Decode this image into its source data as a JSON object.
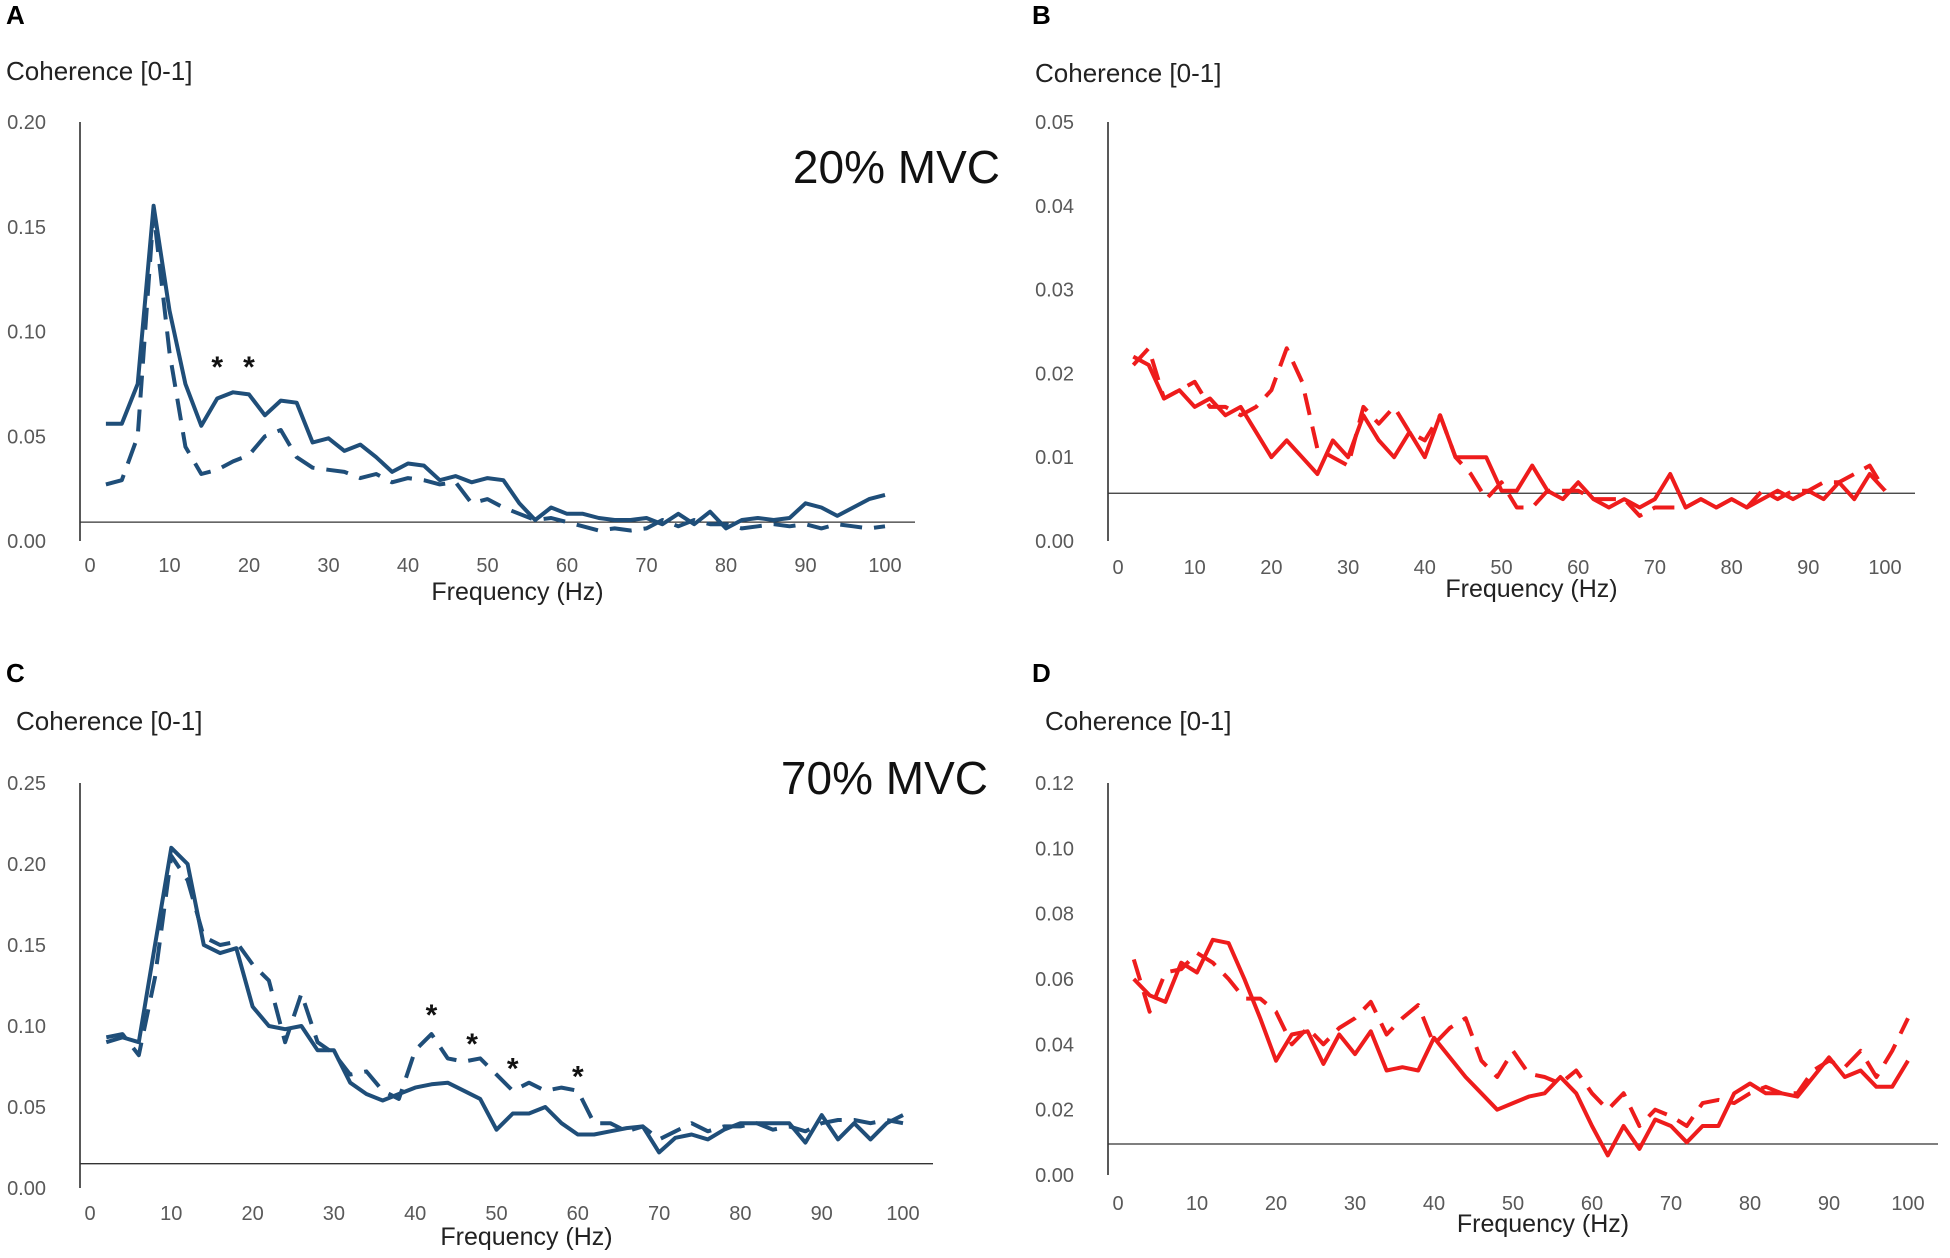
{
  "chart_data": [
    {
      "panel": "A",
      "type": "line",
      "ylabel": "Coherence [0-1]",
      "xlabel": "Frequency (Hz)",
      "ylim": [
        0,
        0.2
      ],
      "xlim": [
        0,
        100
      ],
      "yticks": [
        "0.00",
        "0.05",
        "0.10",
        "0.15",
        "0.20"
      ],
      "xticks": [
        "0",
        "10",
        "20",
        "30",
        "40",
        "50",
        "60",
        "70",
        "80",
        "90",
        "100"
      ],
      "annotation": "20% MVC",
      "significance": [
        {
          "x": 16,
          "y": 0.084,
          "label": "*"
        },
        {
          "x": 20,
          "y": 0.084,
          "label": "*"
        }
      ],
      "threshold": 0.009,
      "color": "#1f4e79",
      "series": [
        {
          "name": "solid",
          "style": "solid",
          "x": [
            2,
            4,
            6,
            8,
            10,
            12,
            14,
            16,
            18,
            20,
            22,
            24,
            26,
            28,
            30,
            32,
            34,
            36,
            38,
            40,
            42,
            44,
            46,
            48,
            50,
            52,
            54,
            56,
            58,
            60,
            62,
            64,
            66,
            68,
            70,
            72,
            74,
            76,
            78,
            80,
            82,
            84,
            86,
            88,
            90,
            92,
            94,
            96,
            98,
            100
          ],
          "y": [
            0.056,
            0.056,
            0.075,
            0.16,
            0.11,
            0.075,
            0.055,
            0.068,
            0.071,
            0.07,
            0.06,
            0.067,
            0.066,
            0.047,
            0.049,
            0.043,
            0.046,
            0.04,
            0.033,
            0.037,
            0.036,
            0.029,
            0.031,
            0.028,
            0.03,
            0.029,
            0.018,
            0.01,
            0.016,
            0.013,
            0.013,
            0.011,
            0.01,
            0.01,
            0.011,
            0.008,
            0.013,
            0.008,
            0.014,
            0.006,
            0.01,
            0.011,
            0.01,
            0.011,
            0.018,
            0.016,
            0.012,
            0.016,
            0.02,
            0.022
          ]
        },
        {
          "name": "dashed",
          "style": "dashed",
          "x": [
            2,
            4,
            6,
            8,
            10,
            12,
            14,
            16,
            18,
            20,
            22,
            24,
            26,
            28,
            30,
            32,
            34,
            36,
            38,
            40,
            42,
            44,
            46,
            48,
            50,
            52,
            54,
            56,
            58,
            60,
            62,
            64,
            66,
            68,
            70,
            72,
            74,
            76,
            78,
            80,
            82,
            84,
            86,
            88,
            90,
            92,
            94,
            96,
            98,
            100
          ],
          "y": [
            0.027,
            0.029,
            0.05,
            0.157,
            0.09,
            0.045,
            0.032,
            0.034,
            0.038,
            0.041,
            0.05,
            0.053,
            0.04,
            0.035,
            0.034,
            0.033,
            0.03,
            0.032,
            0.028,
            0.03,
            0.029,
            0.027,
            0.028,
            0.018,
            0.02,
            0.016,
            0.013,
            0.01,
            0.011,
            0.009,
            0.007,
            0.005,
            0.006,
            0.005,
            0.006,
            0.01,
            0.007,
            0.01,
            0.008,
            0.008,
            0.006,
            0.007,
            0.008,
            0.007,
            0.008,
            0.006,
            0.008,
            0.007,
            0.006,
            0.007
          ]
        }
      ]
    },
    {
      "panel": "B",
      "type": "line",
      "ylabel": "Coherence [0-1]",
      "xlabel": "Frequency (Hz)",
      "ylim": [
        0,
        0.05
      ],
      "xlim": [
        0,
        100
      ],
      "yticks": [
        "0.00",
        "0.01",
        "0.02",
        "0.03",
        "0.04",
        "0.05"
      ],
      "xticks": [
        "0",
        "10",
        "20",
        "30",
        "40",
        "50",
        "60",
        "70",
        "80",
        "90",
        "100"
      ],
      "threshold": 0.0057,
      "color": "#ee1c1c",
      "series": [
        {
          "name": "solid",
          "style": "solid",
          "x": [
            2,
            4,
            6,
            8,
            10,
            12,
            14,
            16,
            18,
            20,
            22,
            24,
            26,
            28,
            30,
            32,
            34,
            36,
            38,
            40,
            42,
            44,
            46,
            48,
            50,
            52,
            54,
            56,
            58,
            60,
            62,
            64,
            66,
            68,
            70,
            72,
            74,
            76,
            78,
            80,
            82,
            84,
            86,
            88,
            90,
            92,
            94,
            96,
            98,
            100
          ],
          "y": [
            0.022,
            0.021,
            0.017,
            0.018,
            0.016,
            0.017,
            0.015,
            0.016,
            0.013,
            0.01,
            0.012,
            0.01,
            0.008,
            0.012,
            0.01,
            0.015,
            0.012,
            0.01,
            0.013,
            0.01,
            0.015,
            0.01,
            0.01,
            0.01,
            0.006,
            0.006,
            0.009,
            0.006,
            0.005,
            0.007,
            0.005,
            0.004,
            0.005,
            0.004,
            0.005,
            0.008,
            0.004,
            0.005,
            0.004,
            0.005,
            0.004,
            0.005,
            0.006,
            0.005,
            0.006,
            0.005,
            0.007,
            0.005,
            0.008,
            0.006
          ]
        },
        {
          "name": "dashed",
          "style": "dashed",
          "x": [
            2,
            4,
            6,
            8,
            10,
            12,
            14,
            16,
            18,
            20,
            22,
            24,
            26,
            28,
            30,
            32,
            34,
            36,
            38,
            40,
            42,
            44,
            46,
            48,
            50,
            52,
            54,
            56,
            58,
            60,
            62,
            64,
            66,
            68,
            70,
            72,
            74,
            76,
            78,
            80,
            82,
            84,
            86,
            88,
            90,
            92,
            94,
            96,
            98,
            100
          ],
          "y": [
            0.021,
            0.023,
            0.017,
            0.018,
            0.019,
            0.016,
            0.016,
            0.015,
            0.016,
            0.018,
            0.023,
            0.019,
            0.011,
            0.01,
            0.009,
            0.016,
            0.014,
            0.016,
            0.013,
            0.012,
            0.015,
            0.01,
            0.008,
            0.005,
            0.007,
            0.004,
            0.004,
            0.006,
            0.006,
            0.006,
            0.005,
            0.005,
            0.005,
            0.003,
            0.004,
            0.004,
            0.004,
            0.005,
            0.004,
            0.005,
            0.004,
            0.006,
            0.005,
            0.006,
            0.006,
            0.007,
            0.007,
            0.008,
            0.009,
            0.006
          ]
        }
      ]
    },
    {
      "panel": "C",
      "type": "line",
      "ylabel": "Coherence [0-1]",
      "xlabel": "Frequency (Hz)",
      "ylim": [
        0,
        0.25
      ],
      "xlim": [
        0,
        100
      ],
      "yticks": [
        "0.00",
        "0.05",
        "0.10",
        "0.15",
        "0.20",
        "0.25"
      ],
      "xticks": [
        "0",
        "10",
        "20",
        "30",
        "40",
        "50",
        "60",
        "70",
        "80",
        "90",
        "100"
      ],
      "annotation": "70% MVC",
      "significance": [
        {
          "x": 42,
          "y": 0.108,
          "label": "*"
        },
        {
          "x": 47,
          "y": 0.09,
          "label": "*"
        },
        {
          "x": 52,
          "y": 0.075,
          "label": "*"
        },
        {
          "x": 60,
          "y": 0.07,
          "label": "*"
        }
      ],
      "threshold": 0.015,
      "color": "#1f4e79",
      "series": [
        {
          "name": "solid",
          "style": "solid",
          "x": [
            2,
            4,
            6,
            8,
            10,
            12,
            14,
            16,
            18,
            20,
            22,
            24,
            26,
            28,
            30,
            32,
            34,
            36,
            38,
            40,
            42,
            44,
            46,
            48,
            50,
            52,
            54,
            56,
            58,
            60,
            62,
            64,
            66,
            68,
            70,
            72,
            74,
            76,
            78,
            80,
            82,
            84,
            86,
            88,
            90,
            92,
            94,
            96,
            98,
            100
          ],
          "y": [
            0.09,
            0.093,
            0.09,
            0.15,
            0.21,
            0.2,
            0.15,
            0.145,
            0.148,
            0.112,
            0.1,
            0.098,
            0.1,
            0.085,
            0.085,
            0.065,
            0.058,
            0.054,
            0.058,
            0.062,
            0.064,
            0.065,
            0.06,
            0.055,
            0.036,
            0.046,
            0.046,
            0.05,
            0.04,
            0.033,
            0.033,
            0.035,
            0.037,
            0.038,
            0.022,
            0.031,
            0.033,
            0.03,
            0.036,
            0.04,
            0.04,
            0.04,
            0.04,
            0.028,
            0.045,
            0.03,
            0.04,
            0.03,
            0.04,
            0.045
          ]
        },
        {
          "name": "dashed",
          "style": "dashed",
          "x": [
            2,
            4,
            6,
            8,
            10,
            12,
            14,
            16,
            18,
            20,
            22,
            24,
            26,
            28,
            30,
            32,
            34,
            36,
            38,
            40,
            42,
            44,
            46,
            48,
            50,
            52,
            54,
            56,
            58,
            60,
            62,
            64,
            66,
            68,
            70,
            72,
            74,
            76,
            78,
            80,
            82,
            84,
            86,
            88,
            90,
            92,
            94,
            96,
            98,
            100
          ],
          "y": [
            0.093,
            0.095,
            0.082,
            0.13,
            0.205,
            0.19,
            0.155,
            0.15,
            0.152,
            0.138,
            0.128,
            0.09,
            0.12,
            0.09,
            0.083,
            0.07,
            0.072,
            0.06,
            0.055,
            0.085,
            0.095,
            0.08,
            0.078,
            0.08,
            0.07,
            0.06,
            0.065,
            0.06,
            0.062,
            0.06,
            0.04,
            0.04,
            0.035,
            0.038,
            0.03,
            0.035,
            0.04,
            0.035,
            0.038,
            0.038,
            0.04,
            0.036,
            0.038,
            0.035,
            0.04,
            0.042,
            0.042,
            0.04,
            0.042,
            0.04
          ]
        }
      ]
    },
    {
      "panel": "D",
      "type": "line",
      "ylabel": "Coherence [0-1]",
      "xlabel": "Frequency (Hz)",
      "ylim": [
        0,
        0.12
      ],
      "xlim": [
        0,
        100
      ],
      "yticks": [
        "0.00",
        "0.02",
        "0.04",
        "0.06",
        "0.08",
        "0.10",
        "0.12"
      ],
      "xticks": [
        "0",
        "10",
        "20",
        "30",
        "40",
        "50",
        "60",
        "70",
        "80",
        "90",
        "100"
      ],
      "threshold": 0.0095,
      "color": "#ee1c1c",
      "series": [
        {
          "name": "solid",
          "style": "solid",
          "x": [
            2,
            4,
            6,
            8,
            10,
            12,
            14,
            16,
            18,
            20,
            22,
            24,
            26,
            28,
            30,
            32,
            34,
            36,
            38,
            40,
            42,
            44,
            46,
            48,
            50,
            52,
            54,
            56,
            58,
            60,
            62,
            64,
            66,
            68,
            70,
            72,
            74,
            76,
            78,
            80,
            82,
            84,
            86,
            88,
            90,
            92,
            94,
            96,
            98,
            100
          ],
          "y": [
            0.06,
            0.055,
            0.053,
            0.065,
            0.062,
            0.072,
            0.071,
            0.06,
            0.048,
            0.035,
            0.043,
            0.044,
            0.034,
            0.043,
            0.037,
            0.044,
            0.032,
            0.033,
            0.032,
            0.042,
            0.036,
            0.03,
            0.025,
            0.02,
            0.022,
            0.024,
            0.025,
            0.03,
            0.025,
            0.015,
            0.006,
            0.015,
            0.008,
            0.017,
            0.015,
            0.01,
            0.015,
            0.015,
            0.025,
            0.028,
            0.025,
            0.025,
            0.024,
            0.03,
            0.036,
            0.03,
            0.032,
            0.027,
            0.027,
            0.035
          ]
        },
        {
          "name": "dashed",
          "style": "dashed",
          "x": [
            2,
            4,
            6,
            8,
            10,
            12,
            14,
            16,
            18,
            20,
            22,
            24,
            26,
            28,
            30,
            32,
            34,
            36,
            38,
            40,
            42,
            44,
            46,
            48,
            50,
            52,
            54,
            56,
            58,
            60,
            62,
            64,
            66,
            68,
            70,
            72,
            74,
            76,
            78,
            80,
            82,
            84,
            86,
            88,
            90,
            92,
            94,
            96,
            98,
            100
          ],
          "y": [
            0.066,
            0.05,
            0.062,
            0.063,
            0.068,
            0.065,
            0.06,
            0.054,
            0.054,
            0.05,
            0.04,
            0.045,
            0.04,
            0.045,
            0.048,
            0.053,
            0.043,
            0.048,
            0.052,
            0.04,
            0.045,
            0.048,
            0.035,
            0.03,
            0.038,
            0.031,
            0.03,
            0.028,
            0.032,
            0.025,
            0.02,
            0.025,
            0.015,
            0.02,
            0.018,
            0.015,
            0.022,
            0.023,
            0.022,
            0.025,
            0.027,
            0.025,
            0.025,
            0.032,
            0.035,
            0.033,
            0.038,
            0.03,
            0.038,
            0.048
          ]
        }
      ]
    }
  ]
}
